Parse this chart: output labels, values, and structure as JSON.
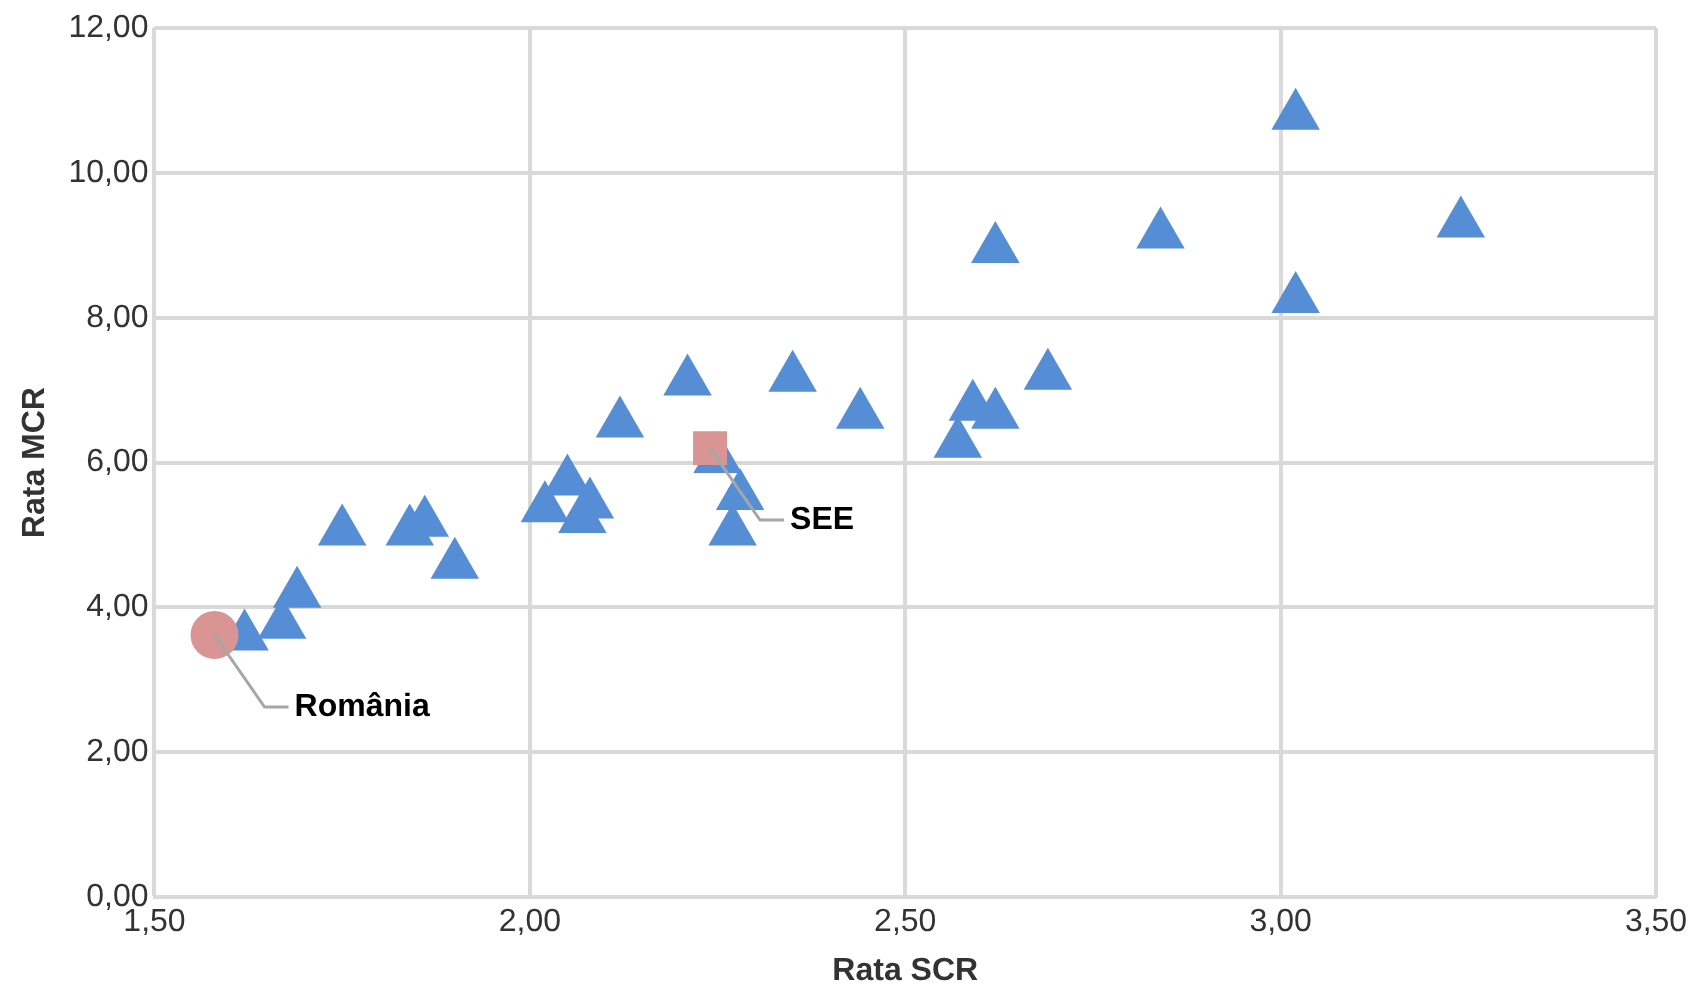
{
  "chart_data": {
    "type": "scatter",
    "xlabel": "Rata SCR",
    "ylabel": "Rata MCR",
    "xlim": [
      1.5,
      3.5
    ],
    "xticks": [
      {
        "value": 1.5,
        "label": "1,50"
      },
      {
        "value": 2,
        "label": "2,00"
      },
      {
        "value": 2.5,
        "label": "2,50"
      },
      {
        "value": 3,
        "label": "3,00"
      },
      {
        "value": 3.5,
        "label": "3,50"
      }
    ],
    "ylim": [
      0,
      12
    ],
    "yticks": [
      {
        "value": 0,
        "label": "0,00"
      },
      {
        "value": 2,
        "label": "2,00"
      },
      {
        "value": 4,
        "label": "4,00"
      },
      {
        "value": 6,
        "label": "6,00"
      },
      {
        "value": 8,
        "label": "8,00"
      },
      {
        "value": 10,
        "label": "10,00"
      },
      {
        "value": 12,
        "label": "12,00"
      }
    ],
    "grid": true,
    "legend": false,
    "series": [
      {
        "color": "#558ed5",
        "marker": "triangle",
        "x": [
          1.62,
          1.67,
          1.69,
          1.75,
          1.84,
          1.86,
          1.9,
          2.02,
          2.05,
          2.08,
          2.07,
          2.12,
          2.21,
          2.35,
          2.25,
          2.28,
          2.27,
          2.44,
          2.59,
          2.57,
          2.62,
          2.69,
          2.62,
          2.84,
          3.02,
          3.02,
          3.24
        ],
        "values": [
          3.6,
          3.76,
          4.19,
          5.05,
          5.05,
          5.17,
          4.59,
          5.37,
          5.74,
          5.42,
          5.22,
          6.54,
          7.12,
          7.17,
          6.05,
          5.54,
          5.05,
          6.66,
          6.77,
          6.26,
          6.66,
          7.2,
          8.95,
          9.15,
          10.79,
          8.26,
          9.3
        ]
      },
      {
        "name": "România",
        "color": "#d99594",
        "marker": "circle",
        "x": [
          1.58
        ],
        "values": [
          3.62
        ]
      },
      {
        "name": "SEE",
        "color": "#d99594",
        "marker": "square",
        "x": [
          2.24
        ],
        "values": [
          6.2
        ]
      }
    ]
  }
}
